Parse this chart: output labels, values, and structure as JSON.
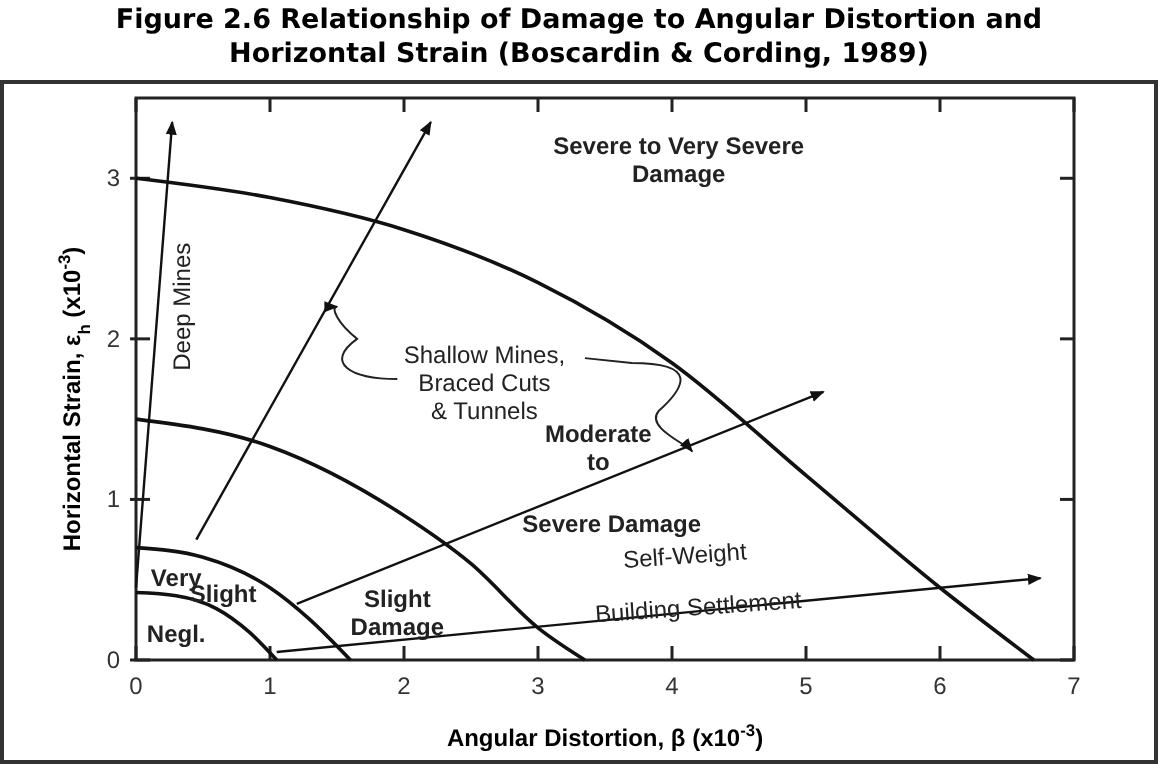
{
  "chart_data": {
    "type": "line",
    "title": "Figure 2.6 Relationship of Damage to Angular Distortion and\nHorizontal Strain (Boscardin & Cording, 1989)",
    "xlabel": "Angular Distortion, β (x10$^{-3}$)",
    "ylabel": "Horizontal Strain, ε$_{h}$ (x10$^{-3}$)",
    "xlim": [
      0,
      7
    ],
    "ylim": [
      0,
      3.5
    ],
    "xticks": [
      0,
      1,
      2,
      3,
      4,
      5,
      6,
      7
    ],
    "yticks": [
      0,
      1,
      2,
      3
    ],
    "grid": false,
    "marker": "none",
    "line_style": "solid",
    "series": [
      {
        "color": "#111111",
        "x": [
          0,
          0.3,
          0.6,
          0.85,
          1.05
        ],
        "values": [
          0.42,
          0.4,
          0.32,
          0.17,
          0
        ]
      },
      {
        "color": "#111111",
        "x": [
          0,
          0.5,
          1,
          1.3,
          1.6
        ],
        "values": [
          0.7,
          0.64,
          0.45,
          0.25,
          0
        ]
      },
      {
        "color": "#111111",
        "x": [
          0,
          1,
          2,
          2.5,
          3,
          3.35
        ],
        "values": [
          1.5,
          1.33,
          0.9,
          0.6,
          0.2,
          0
        ]
      },
      {
        "color": "#111111",
        "x": [
          0,
          1,
          2,
          3,
          4,
          5,
          6,
          6.7
        ],
        "values": [
          3,
          2.88,
          2.68,
          2.35,
          1.85,
          1.15,
          0.45,
          0
        ]
      },
      {
        "color": "#111111",
        "x": [
          0,
          0.27
        ],
        "values": [
          0.45,
          3.35
        ]
      },
      {
        "color": "#111111",
        "x": [
          0.45,
          2.2
        ],
        "values": [
          0.75,
          3.35
        ]
      },
      {
        "color": "#111111",
        "x": [
          1.2,
          5.13
        ],
        "values": [
          0.35,
          1.67
        ]
      },
      {
        "color": "#111111",
        "x": [
          1.05,
          6.75
        ],
        "values": [
          0.05,
          0.51
        ]
      }
    ],
    "annotations": [
      "Deep Mines",
      "Severe to Very Severe\nDamage",
      {
        "text": "Shallow Mines,\nBraced Cuts\n& Tunnels",
        "x": 1.5,
        "y": 2.2
      },
      "Moderate\nto",
      "Severe Damage",
      "Very",
      "Slight",
      "Slight\nDamage",
      "Negl.",
      "Self-Weight",
      "Building Settlement"
    ]
  }
}
